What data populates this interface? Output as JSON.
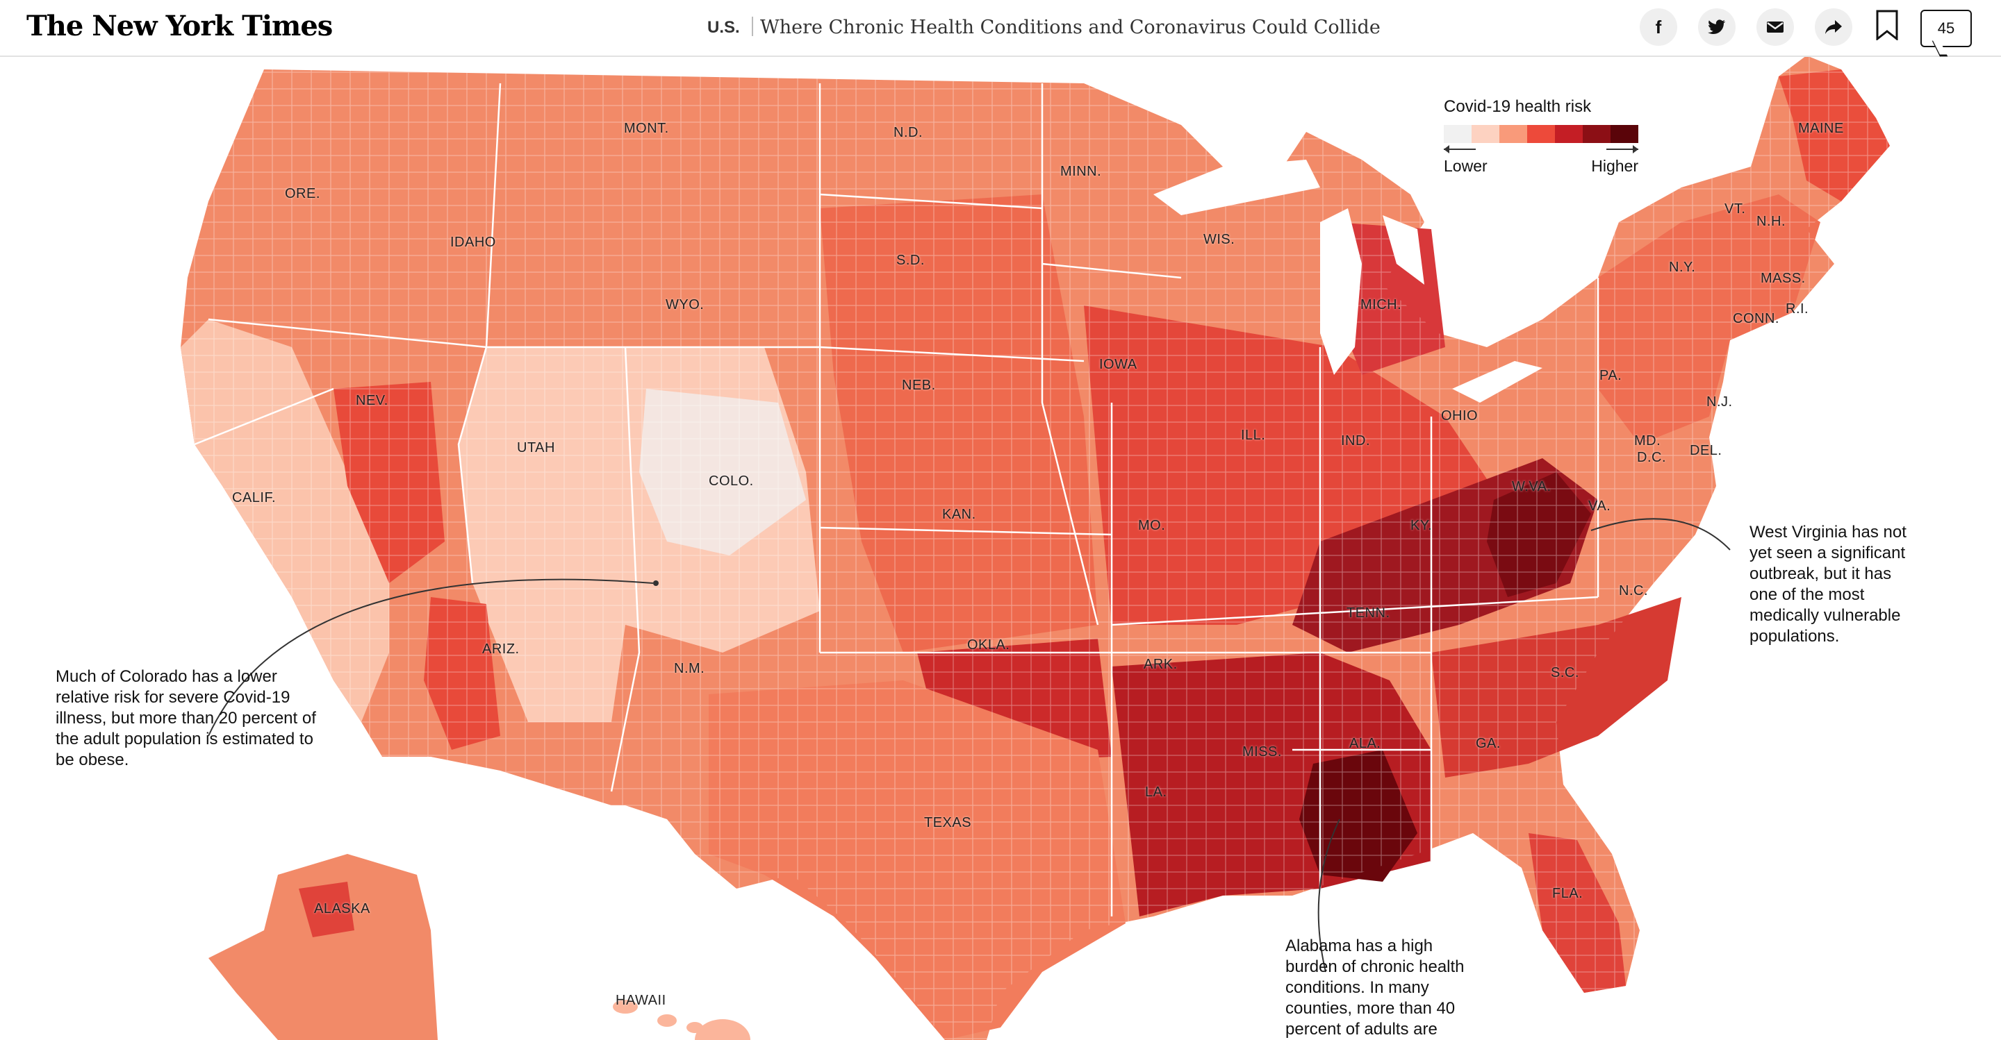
{
  "header": {
    "logo": "The New York Times",
    "section": "U.S.",
    "headline": "Where Chronic Health Conditions and Coronavirus Could Collide",
    "comment_count": "45",
    "share_icons": [
      "facebook-icon",
      "twitter-icon",
      "email-icon",
      "share-icon"
    ]
  },
  "legend": {
    "title": "Covid-19 health risk",
    "lower": "Lower",
    "higher": "Higher",
    "colors": [
      "#f1f1f1",
      "#fdd2c1",
      "#f99a7a",
      "#ed4a3a",
      "#c41e25",
      "#8c0f15",
      "#5a0409"
    ]
  },
  "state_labels": [
    "MONT.",
    "N.D.",
    "MINN.",
    "ORE.",
    "IDAHO",
    "S.D.",
    "WIS.",
    "WYO.",
    "MICH.",
    "IOWA",
    "NEB.",
    "NEV.",
    "UTAH",
    "ILL.",
    "IND.",
    "OHIO",
    "COLO.",
    "KAN.",
    "MO.",
    "CALIF.",
    "KY.",
    "W.VA.",
    "VA.",
    "OKLA.",
    "TENN.",
    "N.C.",
    "ARK.",
    "ARIZ.",
    "N.M.",
    "S.C.",
    "MISS.",
    "ALA.",
    "GA.",
    "LA.",
    "TEXAS",
    "FLA.",
    "ALASKA",
    "HAWAII",
    "MAINE",
    "VT.",
    "N.H.",
    "N.Y.",
    "MASS.",
    "CONN.",
    "R.I.",
    "PA.",
    "N.J.",
    "MD.",
    "D.C.",
    "DEL."
  ],
  "annotations": {
    "colorado": "Much of Colorado has a lower relative risk for severe Covid-19 illness, but more than 20 percent of the adult population is estimated to be obese.",
    "west_virginia": "West Virginia has not yet seen a significant outbreak, but it has one of the most medically vulnerable populations.",
    "alabama": "Alabama has a high burden of chronic health conditions. In many counties, more than 40 percent of adults are"
  }
}
